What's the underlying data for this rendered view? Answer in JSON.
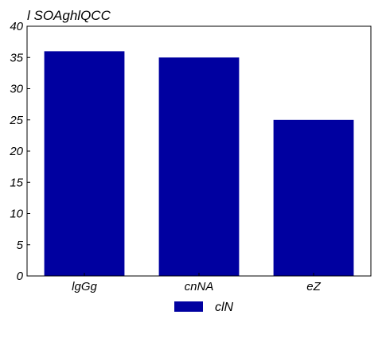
{
  "chart_data": {
    "type": "bar",
    "title": "l SOAghlQCC",
    "categories": [
      "lgGg",
      "cnNA",
      "eZ"
    ],
    "series": [
      {
        "name": "clN",
        "values": [
          36,
          35,
          25
        ],
        "color": "#0000a0"
      }
    ],
    "xlabel": "",
    "ylabel": "",
    "ylim": [
      0,
      40
    ],
    "yticks": [
      0,
      5,
      10,
      15,
      20,
      25,
      30,
      35,
      40
    ],
    "grid": false,
    "legend": "bottom-center"
  }
}
